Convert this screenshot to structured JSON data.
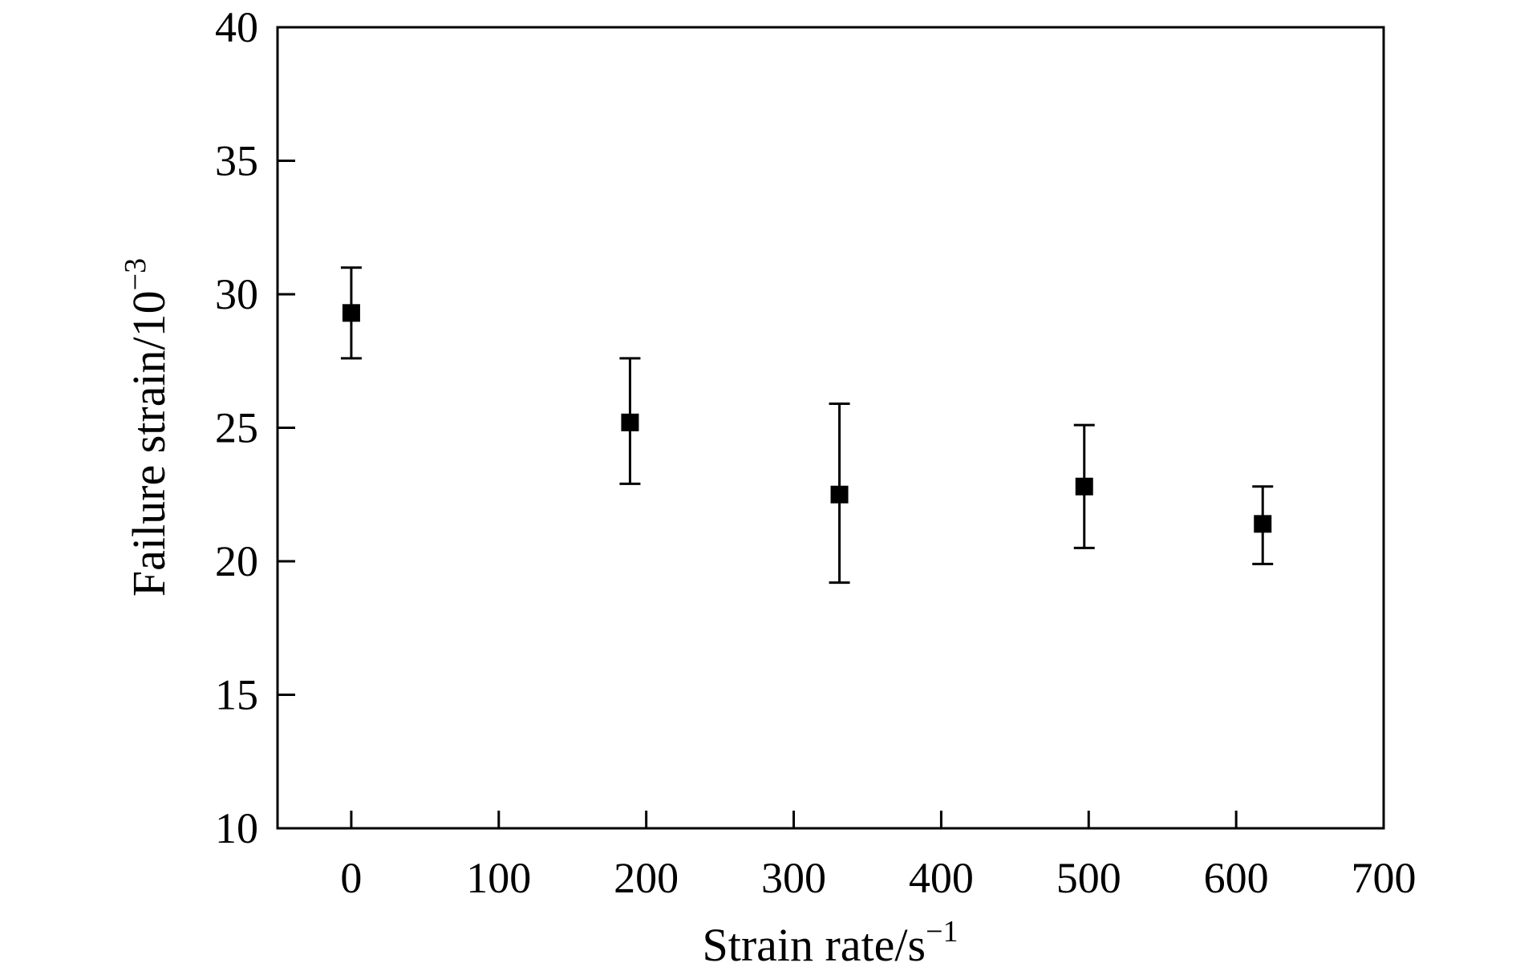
{
  "chart_data": {
    "type": "scatter",
    "xlabel": "Strain rate/s",
    "xlabel_sup": "−1",
    "ylabel": "Failure strain/10",
    "ylabel_sup": "−3",
    "xlim": [
      -50,
      700
    ],
    "ylim": [
      10,
      40
    ],
    "xticks": [
      0,
      100,
      200,
      300,
      400,
      500,
      600,
      700
    ],
    "yticks": [
      10,
      15,
      20,
      25,
      30,
      35,
      40
    ],
    "grid": false,
    "marker": "square",
    "color": "#000000",
    "points": [
      {
        "x": 0,
        "y": 29.3,
        "y_low": 27.6,
        "y_high": 31.0
      },
      {
        "x": 189,
        "y": 25.2,
        "y_low": 22.9,
        "y_high": 27.6
      },
      {
        "x": 331,
        "y": 22.5,
        "y_low": 19.2,
        "y_high": 25.9
      },
      {
        "x": 497,
        "y": 22.8,
        "y_low": 20.5,
        "y_high": 25.1
      },
      {
        "x": 618,
        "y": 21.4,
        "y_low": 19.9,
        "y_high": 22.8
      }
    ]
  }
}
